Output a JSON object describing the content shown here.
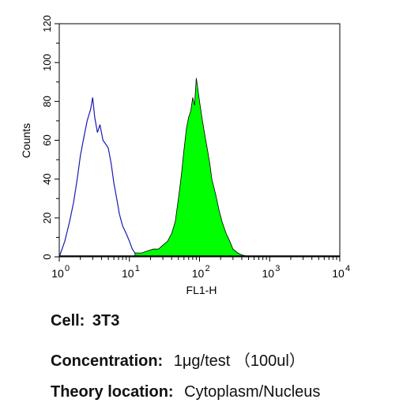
{
  "chart_data": {
    "type": "area",
    "title": "",
    "xlabel": "FL1-H",
    "ylabel": "Counts",
    "xscale": "log",
    "xlim": [
      1,
      10000
    ],
    "ylim": [
      0,
      120
    ],
    "grid": false,
    "legend": "none",
    "x_ticks": [
      {
        "value": 1,
        "base": "10",
        "exp": "0"
      },
      {
        "value": 10,
        "base": "10",
        "exp": "1"
      },
      {
        "value": 100,
        "base": "10",
        "exp": "2"
      },
      {
        "value": 1000,
        "base": "10",
        "exp": "3"
      },
      {
        "value": 10000,
        "base": "10",
        "exp": "4"
      }
    ],
    "y_ticks": [
      "0",
      "20",
      "40",
      "60",
      "80",
      "100",
      "120"
    ],
    "series": [
      {
        "style": "outline",
        "color": "#1a1ab4",
        "x": [
          1,
          1.2,
          1.4,
          1.6,
          1.8,
          2.0,
          2.2,
          2.5,
          2.8,
          3.0,
          3.2,
          3.5,
          3.8,
          4.2,
          4.6,
          5.0,
          5.5,
          6.0,
          6.6,
          7.2,
          8.0,
          9.0,
          10,
          11,
          12,
          13,
          14
        ],
        "y": [
          0,
          8,
          18,
          28,
          40,
          52,
          60,
          70,
          76,
          82,
          72,
          64,
          68,
          60,
          58,
          56,
          48,
          38,
          30,
          22,
          16,
          12,
          8,
          4,
          2,
          1,
          0
        ]
      },
      {
        "style": "filled",
        "color": "#00ff00",
        "x": [
          12,
          15,
          18,
          22,
          26,
          30,
          35,
          40,
          45,
          50,
          55,
          60,
          65,
          70,
          75,
          80,
          85,
          90,
          95,
          100,
          110,
          120,
          130,
          140,
          150,
          170,
          190,
          210,
          240,
          270,
          300,
          350,
          400,
          450,
          500
        ],
        "y": [
          2,
          2,
          3,
          4,
          4,
          6,
          8,
          12,
          18,
          30,
          42,
          55,
          66,
          72,
          75,
          82,
          78,
          92,
          86,
          80,
          70,
          62,
          55,
          48,
          40,
          32,
          24,
          18,
          12,
          8,
          4,
          2,
          1,
          0.5,
          0
        ]
      }
    ]
  },
  "info": {
    "cell_label": "Cell:",
    "cell_value": "3T3",
    "concentration_label": "Concentration:",
    "concentration_value": "1μg/test （100ul）",
    "location_label": "Theory location:",
    "location_value": "Cytoplasm/Nucleus"
  }
}
